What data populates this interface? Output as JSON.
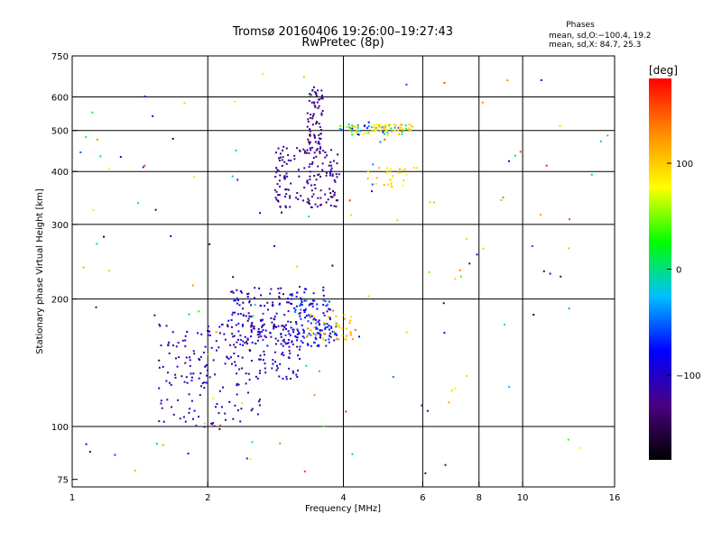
{
  "chart_data": {
    "type": "scatter",
    "title": "Tromsø 20160406 19:26:00–19:27:43",
    "subtitle": "RwPretec (8p)",
    "xlabel": "Frequency [MHz]",
    "ylabel": "Stationary phase Virtual Height [km]",
    "x_scale": "log",
    "y_scale": "log",
    "xlim": [
      1,
      16
    ],
    "ylim": [
      72,
      750
    ],
    "x_ticks": [
      1,
      2,
      4,
      6,
      8,
      10,
      16
    ],
    "x_ticklabels": [
      "1",
      "2",
      "4",
      "6",
      "8",
      "10",
      "16"
    ],
    "y_ticks": [
      75,
      100,
      200,
      300,
      400,
      500,
      600,
      750
    ],
    "y_ticklabels": [
      "75",
      "100",
      "200",
      "300",
      "400",
      "500",
      "600",
      "750"
    ],
    "grid": true,
    "phase_box": {
      "title": "Phases",
      "line_o": "mean, sd,O:−100.4, 19.2",
      "line_x": "mean, sd,X:  84.7, 25.3"
    },
    "colorbar": {
      "label": "[deg]",
      "range": [
        -180,
        180
      ],
      "tick_values": [
        100,
        0,
        -100
      ],
      "tick_labels": [
        "100",
        "0",
        "−100"
      ],
      "colors": [
        "#000000",
        "#4b0082",
        "#0000ff",
        "#00bfff",
        "#00ff00",
        "#ffff00",
        "#ff8c00",
        "#ff0000"
      ]
    },
    "series": [
      {
        "clusters": [
          {
            "f0": 1.55,
            "f1": 2.6,
            "h0": 100,
            "h1": 135,
            "n": 70,
            "ph": [
              -130,
              -85
            ]
          },
          {
            "f0": 1.55,
            "f1": 3.2,
            "h0": 130,
            "h1": 175,
            "n": 180,
            "ph": [
              -140,
              -80
            ]
          },
          {
            "f0": 2.2,
            "f1": 3.8,
            "h0": 155,
            "h1": 215,
            "n": 220,
            "ph": [
              -140,
              -60
            ]
          },
          {
            "f0": 3.1,
            "f1": 3.9,
            "h0": 155,
            "h1": 200,
            "n": 60,
            "ph": [
              -90,
              -40
            ]
          },
          {
            "f0": 3.3,
            "f1": 4.2,
            "h0": 160,
            "h1": 185,
            "n": 40,
            "ph": [
              80,
              130
            ]
          },
          {
            "f0": 2.8,
            "f1": 3.9,
            "h0": 330,
            "h1": 460,
            "n": 160,
            "ph": [
              -150,
              -100
            ]
          },
          {
            "f0": 3.3,
            "f1": 3.6,
            "h0": 440,
            "h1": 640,
            "n": 70,
            "ph": [
              -150,
              -100
            ]
          },
          {
            "f0": 3.9,
            "f1": 5.5,
            "h0": 490,
            "h1": 520,
            "n": 60,
            "ph": [
              -120,
              110
            ]
          },
          {
            "f0": 4.6,
            "f1": 5.7,
            "h0": 500,
            "h1": 520,
            "n": 40,
            "ph": [
              80,
              120
            ]
          },
          {
            "f0": 4.5,
            "f1": 5.8,
            "h0": 370,
            "h1": 410,
            "n": 30,
            "ph": [
              70,
              120
            ]
          },
          {
            "f0": 1.0,
            "f1": 16,
            "h0": 75,
            "h1": 700,
            "n": 140,
            "ph": [
              -170,
              170
            ]
          }
        ]
      }
    ]
  }
}
